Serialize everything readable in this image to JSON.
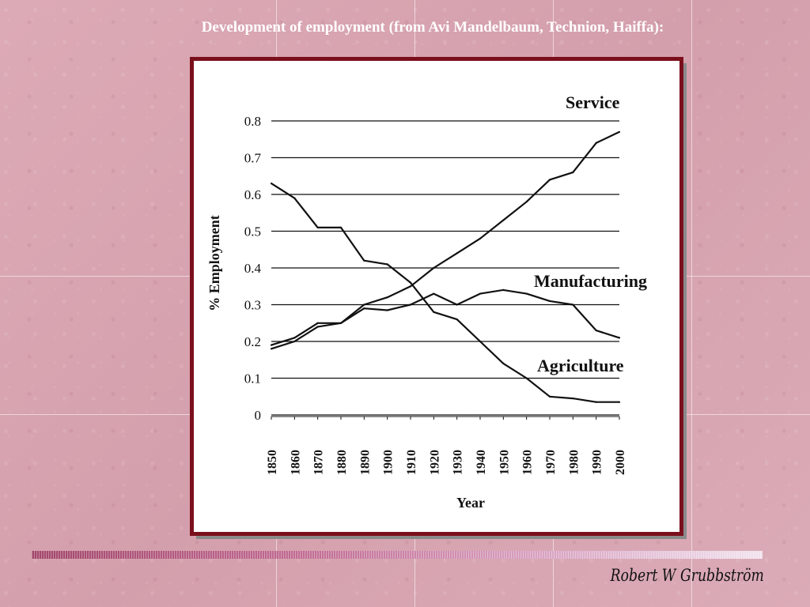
{
  "slide": {
    "title": "Development of employment (from Avi Mandelbaum, Technion, Haiffa):",
    "signature": "Robert W Grubbström"
  },
  "colors": {
    "background": "#d9a5b1",
    "frame": "#7b0f1c",
    "title_text": "#ffffff",
    "line": "#111111"
  },
  "chart_data": {
    "type": "line",
    "title": "",
    "xlabel": "Year",
    "ylabel": "% Employment",
    "x": [
      1850,
      1860,
      1870,
      1880,
      1890,
      1900,
      1910,
      1920,
      1930,
      1940,
      1950,
      1960,
      1970,
      1980,
      1990,
      2000
    ],
    "x_tick_labels": [
      "1850",
      "1860",
      "1870",
      "1880",
      "1890",
      "1900",
      "1910",
      "1920",
      "1930",
      "1940",
      "1950",
      "1960",
      "1970",
      "1980",
      "1990",
      "2000"
    ],
    "y_ticks": [
      0,
      0.1,
      0.2,
      0.3,
      0.4,
      0.5,
      0.6,
      0.7,
      0.8
    ],
    "y_tick_labels": [
      "0",
      "0.1",
      "0.2",
      "0.3",
      "0.4",
      "0.5",
      "0.6",
      "0.7",
      "0.8"
    ],
    "ylim": [
      0,
      0.8
    ],
    "grid": "horizontal",
    "series": [
      {
        "name": "Service",
        "values": [
          0.18,
          0.2,
          0.24,
          0.25,
          0.3,
          0.32,
          0.35,
          0.4,
          0.44,
          0.48,
          0.53,
          0.58,
          0.64,
          0.66,
          0.74,
          0.77
        ]
      },
      {
        "name": "Manufacturing",
        "values": [
          0.19,
          0.21,
          0.25,
          0.25,
          0.29,
          0.285,
          0.3,
          0.33,
          0.3,
          0.33,
          0.34,
          0.33,
          0.31,
          0.3,
          0.23,
          0.21
        ]
      },
      {
        "name": "Agriculture",
        "values": [
          0.63,
          0.59,
          0.51,
          0.51,
          0.42,
          0.41,
          0.36,
          0.28,
          0.26,
          0.2,
          0.14,
          0.1,
          0.05,
          0.045,
          0.035,
          0.035
        ]
      }
    ]
  }
}
